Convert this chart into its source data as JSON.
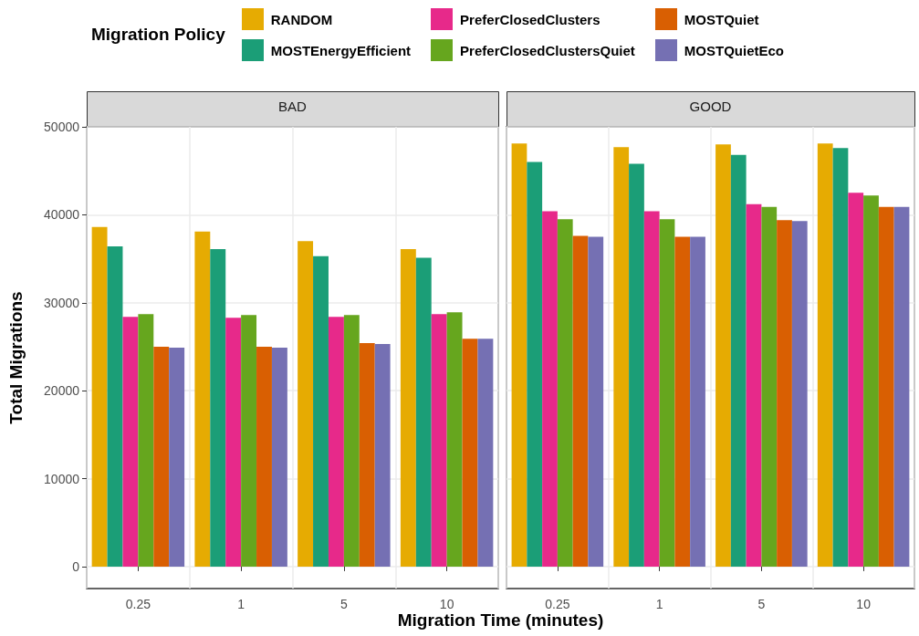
{
  "chart_data": [
    {
      "type": "bar",
      "title": "BAD",
      "xlabel": "Migration Time (minutes)",
      "ylabel": "Total Migrations",
      "legend_title": "Migration Policy",
      "legend": "top",
      "grid": true,
      "categories": [
        "0.25",
        "1",
        "5",
        "10"
      ],
      "ylim": [
        -2500,
        50000
      ],
      "yticks": [
        0,
        10000,
        20000,
        30000,
        40000,
        50000
      ],
      "series": [
        {
          "name": "RANDOM",
          "color": "#e6ab02",
          "values": [
            38600,
            38100,
            37000,
            36100
          ]
        },
        {
          "name": "MOSTEnergyEfficient",
          "color": "#1b9e77",
          "values": [
            36400,
            36100,
            35300,
            35100
          ]
        },
        {
          "name": "PreferClosedClusters",
          "color": "#e7298a",
          "values": [
            28400,
            28300,
            28400,
            28700
          ]
        },
        {
          "name": "PreferClosedClustersQuiet",
          "color": "#66a61e",
          "values": [
            28700,
            28600,
            28600,
            28900
          ]
        },
        {
          "name": "MOSTQuiet",
          "color": "#d95f02",
          "values": [
            25000,
            25000,
            25400,
            25900
          ]
        },
        {
          "name": "MOSTQuietEco",
          "color": "#7570b3",
          "values": [
            24900,
            24900,
            25300,
            25900
          ]
        }
      ]
    },
    {
      "type": "bar",
      "title": "GOOD",
      "grid": true,
      "tick_labels": "x",
      "categories": [
        "0.25",
        "1",
        "5",
        "10"
      ],
      "ylim": [
        -2500,
        50000
      ],
      "yticks": [
        0,
        10000,
        20000,
        30000,
        40000,
        50000
      ],
      "series": [
        {
          "color": "#e6ab02",
          "values": [
            48100,
            47700,
            48000,
            48100
          ]
        },
        {
          "color": "#1b9e77",
          "values": [
            46000,
            45800,
            46800,
            47600
          ]
        },
        {
          "color": "#e7298a",
          "values": [
            40400,
            40400,
            41200,
            42500
          ]
        },
        {
          "color": "#66a61e",
          "values": [
            39500,
            39500,
            40900,
            42200
          ]
        },
        {
          "color": "#d95f02",
          "values": [
            37600,
            37500,
            39400,
            40900
          ]
        },
        {
          "color": "#7570b3",
          "values": [
            37500,
            37500,
            39300,
            40900
          ]
        }
      ]
    }
  ]
}
